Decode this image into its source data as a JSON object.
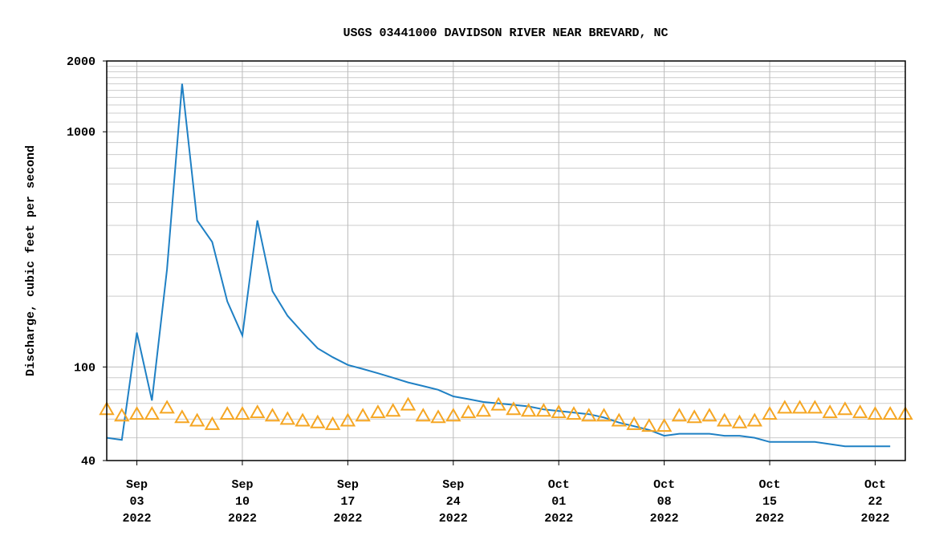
{
  "chart_data": {
    "type": "line",
    "title": "USGS 03441000 DAVIDSON RIVER NEAR BREVARD, NC",
    "y_label": "Discharge, cubic feet per second",
    "log_y": true,
    "grid": true,
    "ylim": [
      40,
      2000
    ],
    "yticks": [
      40,
      100,
      1000,
      2000
    ],
    "minor_yticks": [
      50,
      60,
      70,
      80,
      90,
      200,
      300,
      400,
      500,
      600,
      700,
      800,
      900,
      1100,
      1200,
      1300,
      1400,
      1500,
      1600,
      1700,
      1800,
      1900
    ],
    "xlim": [
      "2022-09-01",
      "2022-10-24"
    ],
    "xticks": [
      {
        "value": "2022-09-03",
        "label": "Sep 03 2022"
      },
      {
        "value": "2022-09-10",
        "label": "Sep 10 2022"
      },
      {
        "value": "2022-09-17",
        "label": "Sep 17 2022"
      },
      {
        "value": "2022-09-24",
        "label": "Sep 24 2022"
      },
      {
        "value": "2022-10-01",
        "label": "Oct 01 2022"
      },
      {
        "value": "2022-10-08",
        "label": "Oct 08 2022"
      },
      {
        "value": "2022-10-15",
        "label": "Oct 15 2022"
      },
      {
        "value": "2022-10-22",
        "label": "Oct 22 2022"
      }
    ],
    "x": [
      "2022-09-01",
      "2022-09-02",
      "2022-09-03",
      "2022-09-04",
      "2022-09-05",
      "2022-09-06",
      "2022-09-07",
      "2022-09-08",
      "2022-09-09",
      "2022-09-10",
      "2022-09-11",
      "2022-09-12",
      "2022-09-13",
      "2022-09-14",
      "2022-09-15",
      "2022-09-16",
      "2022-09-17",
      "2022-09-18",
      "2022-09-19",
      "2022-09-20",
      "2022-09-21",
      "2022-09-22",
      "2022-09-23",
      "2022-09-24",
      "2022-09-25",
      "2022-09-26",
      "2022-09-27",
      "2022-09-28",
      "2022-09-29",
      "2022-09-30",
      "2022-10-01",
      "2022-10-02",
      "2022-10-03",
      "2022-10-04",
      "2022-10-05",
      "2022-10-06",
      "2022-10-07",
      "2022-10-08",
      "2022-10-09",
      "2022-10-10",
      "2022-10-11",
      "2022-10-12",
      "2022-10-13",
      "2022-10-14",
      "2022-10-15",
      "2022-10-16",
      "2022-10-17",
      "2022-10-18",
      "2022-10-19",
      "2022-10-20",
      "2022-10-21",
      "2022-10-22",
      "2022-10-23",
      "2022-10-24"
    ],
    "series": [
      {
        "color": "#1f80c4",
        "marker": "line",
        "values": [
          50,
          49,
          140,
          72,
          260,
          1600,
          420,
          340,
          190,
          136,
          420,
          210,
          165,
          140,
          120,
          110,
          102,
          98,
          94,
          90,
          86,
          83,
          80,
          75,
          73,
          71,
          70,
          69,
          68,
          66,
          65,
          64,
          63,
          61,
          58,
          56,
          54,
          51,
          52,
          52,
          52,
          51,
          51,
          50,
          48,
          48,
          48,
          48,
          47,
          46,
          46,
          46,
          46,
          null
        ]
      },
      {
        "color": "#f5a623",
        "marker": "triangle",
        "values": [
          66,
          62,
          63,
          63,
          67,
          61,
          59,
          57,
          63,
          63,
          64,
          62,
          60,
          59,
          58,
          57,
          59,
          62,
          64,
          65,
          69,
          62,
          61,
          62,
          64,
          65,
          69,
          66,
          65,
          65,
          64,
          63,
          62,
          62,
          59,
          57,
          56,
          56,
          62,
          61,
          62,
          59,
          58,
          59,
          63,
          67,
          67,
          67,
          64,
          66,
          64,
          63,
          63,
          63
        ]
      }
    ]
  }
}
